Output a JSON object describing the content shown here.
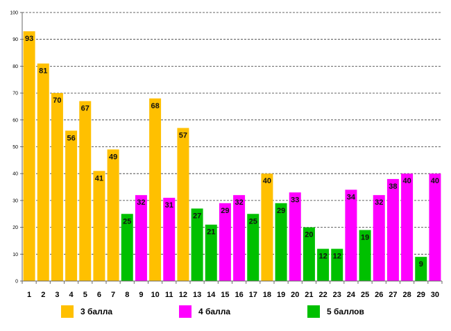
{
  "chart_data": {
    "type": "bar",
    "title": "",
    "xlabel": "",
    "ylabel": "",
    "ylim": [
      0,
      100
    ],
    "yticks": [
      0,
      10,
      20,
      30,
      40,
      50,
      60,
      70,
      80,
      90,
      100
    ],
    "grid": true,
    "categories": [
      "1",
      "2",
      "3",
      "4",
      "5",
      "6",
      "7",
      "8",
      "9",
      "10",
      "11",
      "12",
      "13",
      "14",
      "15",
      "16",
      "17",
      "18",
      "19",
      "20",
      "21",
      "22",
      "23",
      "24",
      "25",
      "26",
      "27",
      "28",
      "29",
      "30"
    ],
    "values": [
      93,
      81,
      70,
      56,
      67,
      41,
      49,
      25,
      32,
      68,
      31,
      57,
      27,
      21,
      29,
      32,
      25,
      40,
      29,
      33,
      20,
      12,
      12,
      34,
      19,
      32,
      38,
      40,
      9,
      40
    ],
    "groups": [
      "3 балла",
      "3 балла",
      "3 балла",
      "3 балла",
      "3 балла",
      "3 балла",
      "3 балла",
      "5 баллов",
      "4 балла",
      "3 балла",
      "4 балла",
      "3 балла",
      "5 баллов",
      "5 баллов",
      "4 балла",
      "4 балла",
      "5 баллов",
      "3 балла",
      "5 баллов",
      "4 балла",
      "5 баллов",
      "5 баллов",
      "5 баллов",
      "4 балла",
      "5 баллов",
      "4 балла",
      "4 балла",
      "4 балла",
      "5 баллов",
      "4 балла"
    ],
    "legend": [
      {
        "name": "3 балла",
        "color": "#FFC000"
      },
      {
        "name": "4 балла",
        "color": "#FF00FF"
      },
      {
        "name": "5 баллов",
        "color": "#00C000"
      }
    ],
    "legend_position": "bottom"
  }
}
